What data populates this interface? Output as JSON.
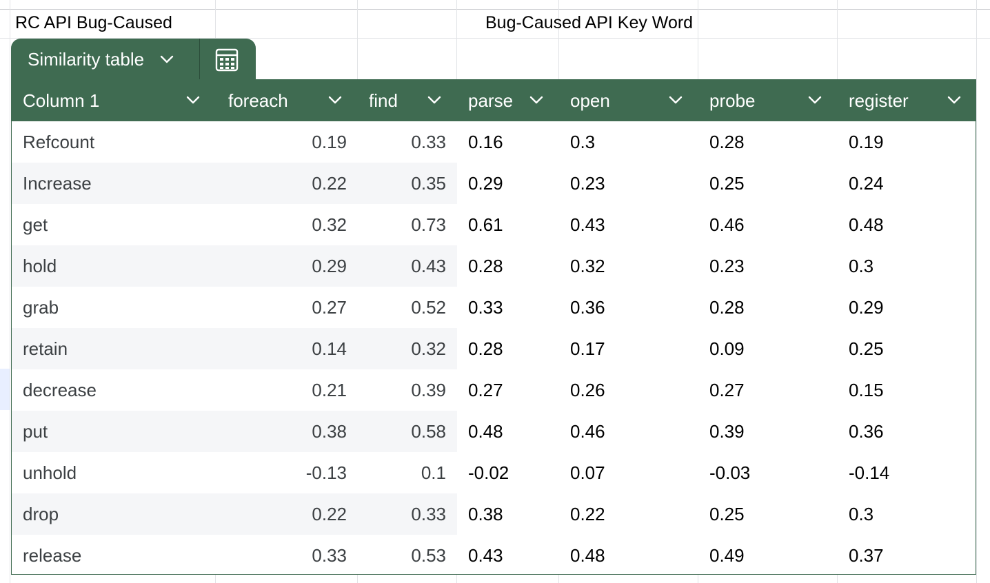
{
  "header": {
    "left_title": "RC API Bug-Caused",
    "center_title": "Bug-Caused API Key Word"
  },
  "table_tab": {
    "name": "Similarity table",
    "name_icon": "chevron-down-icon",
    "action_icon": "table-calculator-icon"
  },
  "table": {
    "columns": [
      "Column 1",
      "foreach",
      "find",
      "parse",
      "open",
      "probe",
      "register"
    ],
    "rows": [
      {
        "label": "Refcount",
        "values": [
          "0.19",
          "0.33",
          "0.16",
          "0.3",
          "0.28",
          "0.19"
        ]
      },
      {
        "label": "Increase",
        "values": [
          "0.22",
          "0.35",
          "0.29",
          "0.23",
          "0.25",
          "0.24"
        ]
      },
      {
        "label": "get",
        "values": [
          "0.32",
          "0.73",
          "0.61",
          "0.43",
          "0.46",
          "0.48"
        ]
      },
      {
        "label": "hold",
        "values": [
          "0.29",
          "0.43",
          "0.28",
          "0.32",
          "0.23",
          "0.3"
        ]
      },
      {
        "label": "grab",
        "values": [
          "0.27",
          "0.52",
          "0.33",
          "0.36",
          "0.28",
          "0.29"
        ]
      },
      {
        "label": "retain",
        "values": [
          "0.14",
          "0.32",
          "0.28",
          "0.17",
          "0.09",
          "0.25"
        ]
      },
      {
        "label": "decrease",
        "values": [
          "0.21",
          "0.39",
          "0.27",
          "0.26",
          "0.27",
          "0.15"
        ]
      },
      {
        "label": "put",
        "values": [
          "0.38",
          "0.58",
          "0.48",
          "0.46",
          "0.39",
          "0.36"
        ]
      },
      {
        "label": "unhold",
        "values": [
          "-0.13",
          "0.1",
          "-0.02",
          "0.07",
          "-0.03",
          "-0.14"
        ]
      },
      {
        "label": "drop",
        "values": [
          "0.22",
          "0.33",
          "0.38",
          "0.22",
          "0.25",
          "0.3"
        ]
      },
      {
        "label": "release",
        "values": [
          "0.33",
          "0.53",
          "0.43",
          "0.48",
          "0.49",
          "0.37"
        ]
      }
    ]
  },
  "colors": {
    "table_header": "#3f6b51",
    "header_text": "#ffffff",
    "band": "#f5f6f8",
    "gridline": "#e1e3e6"
  }
}
